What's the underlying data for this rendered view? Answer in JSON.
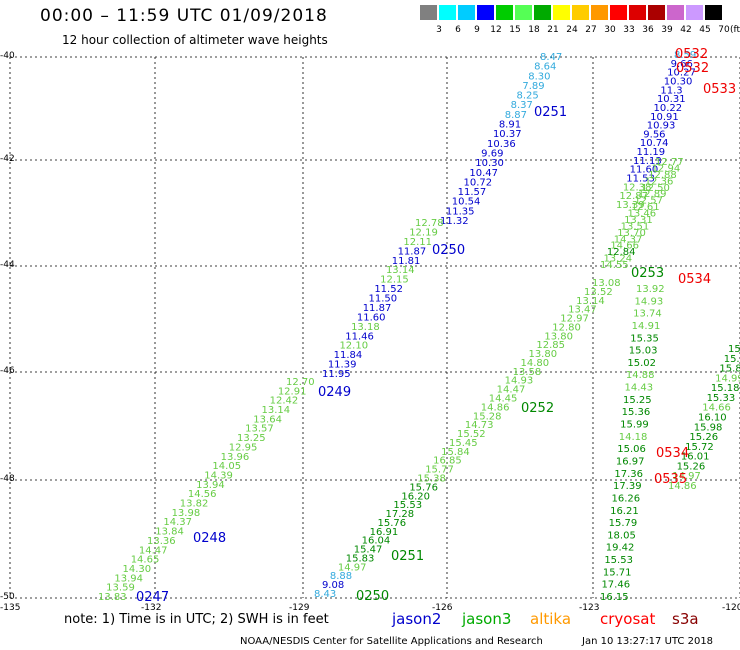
{
  "title": "00:00 – 11:59 UTC 01/09/2018",
  "subtitle": "12 hour collection of altimeter wave heights",
  "legend": {
    "unit": "(ft)",
    "colors": [
      "#808080",
      "#00ffff",
      "#00ccff",
      "#0000ff",
      "#00cc00",
      "#55ff55",
      "#00aa00",
      "#ffff00",
      "#ffcc00",
      "#ff9900",
      "#ff0000",
      "#dd0000",
      "#aa0000",
      "#cc66cc",
      "#cc99ff",
      "#000000"
    ],
    "labels": [
      "3",
      "6",
      "9",
      "12",
      "15",
      "18",
      "21",
      "24",
      "27",
      "30",
      "33",
      "36",
      "39",
      "42",
      "45",
      "70"
    ]
  },
  "axes": {
    "lat_labels": [
      "-40",
      "-42",
      "-44",
      "-46",
      "-48",
      "-50"
    ],
    "lon_labels": [
      "-135",
      "-132",
      "-129",
      "-126",
      "-123",
      "-120"
    ]
  },
  "note": "note:  1) Time is in UTC;  2) SWH is in feet",
  "satellites": [
    {
      "name": "jason2",
      "color": "#0000cc"
    },
    {
      "name": "jason3",
      "color": "#00aa00"
    },
    {
      "name": "altika",
      "color": "#ff9900"
    },
    {
      "name": "cryosat",
      "color": "#ff0000"
    },
    {
      "name": "s3a",
      "color": "#880000"
    }
  ],
  "credit": "NOAA/NESDIS Center for Satellite Applications and Research",
  "timestamp": "Jan 10 13:27:17 UTC 2018",
  "colors": {
    "sky": "#33aadd",
    "blue": "#0000cc",
    "light_green": "#66cc44",
    "green": "#008800",
    "red": "#ee0000"
  },
  "track_labels": [
    {
      "text": "0251",
      "color": "blue"
    },
    {
      "text": "0250",
      "color": "blue"
    },
    {
      "text": "0249",
      "color": "blue"
    },
    {
      "text": "0248",
      "color": "blue"
    },
    {
      "text": "0247",
      "color": "blue"
    },
    {
      "text": "0253",
      "color": "green"
    },
    {
      "text": "0252",
      "color": "green"
    },
    {
      "text": "0251",
      "color": "green"
    },
    {
      "text": "0250",
      "color": "green"
    },
    {
      "text": "0532",
      "color": "red"
    },
    {
      "text": "0532",
      "color": "red"
    },
    {
      "text": "0533",
      "color": "red"
    },
    {
      "text": "0534",
      "color": "red"
    },
    {
      "text": "0534",
      "color": "red"
    },
    {
      "text": "0535",
      "color": "red"
    }
  ],
  "swh_values": [
    {
      "t": "8.47",
      "c": "sky"
    },
    {
      "t": "8.64",
      "c": "sky"
    },
    {
      "t": "8.30",
      "c": "sky"
    },
    {
      "t": "7.89",
      "c": "sky"
    },
    {
      "t": "8.25",
      "c": "sky"
    },
    {
      "t": "8.37",
      "c": "sky"
    },
    {
      "t": "8.87",
      "c": "sky"
    },
    {
      "t": "8.91",
      "c": "blue"
    },
    {
      "t": "10.37",
      "c": "blue"
    },
    {
      "t": "10.36",
      "c": "blue"
    },
    {
      "t": "9.69",
      "c": "blue"
    },
    {
      "t": "10.30",
      "c": "blue"
    },
    {
      "t": "10.47",
      "c": "blue"
    },
    {
      "t": "10.72",
      "c": "blue"
    },
    {
      "t": "11.57",
      "c": "blue"
    },
    {
      "t": "10.54",
      "c": "blue"
    },
    {
      "t": "11.35",
      "c": "blue"
    },
    {
      "t": "11.32",
      "c": "blue"
    },
    {
      "t": "12.78",
      "c": "light_green"
    },
    {
      "t": "12.19",
      "c": "light_green"
    },
    {
      "t": "12.11",
      "c": "light_green"
    },
    {
      "t": "11.87",
      "c": "blue"
    },
    {
      "t": "11.81",
      "c": "blue"
    },
    {
      "t": "13.14",
      "c": "light_green"
    },
    {
      "t": "12.15",
      "c": "light_green"
    },
    {
      "t": "11.52",
      "c": "blue"
    },
    {
      "t": "11.50",
      "c": "blue"
    },
    {
      "t": "11.87",
      "c": "blue"
    },
    {
      "t": "11.60",
      "c": "blue"
    },
    {
      "t": "13.18",
      "c": "light_green"
    },
    {
      "t": "11.46",
      "c": "blue"
    },
    {
      "t": "12.10",
      "c": "light_green"
    },
    {
      "t": "11.84",
      "c": "blue"
    },
    {
      "t": "11.39",
      "c": "blue"
    },
    {
      "t": "11.95",
      "c": "blue"
    },
    {
      "t": "12.70",
      "c": "light_green"
    },
    {
      "t": "12.91",
      "c": "light_green"
    },
    {
      "t": "12.42",
      "c": "light_green"
    },
    {
      "t": "13.14",
      "c": "light_green"
    },
    {
      "t": "13.64",
      "c": "light_green"
    },
    {
      "t": "13.57",
      "c": "light_green"
    },
    {
      "t": "13.25",
      "c": "light_green"
    },
    {
      "t": "12.95",
      "c": "light_green"
    },
    {
      "t": "13.96",
      "c": "light_green"
    },
    {
      "t": "14.05",
      "c": "light_green"
    },
    {
      "t": "14.39",
      "c": "light_green"
    },
    {
      "t": "13.94",
      "c": "light_green"
    },
    {
      "t": "14.56",
      "c": "light_green"
    },
    {
      "t": "13.82",
      "c": "light_green"
    },
    {
      "t": "13.98",
      "c": "light_green"
    },
    {
      "t": "14.37",
      "c": "light_green"
    },
    {
      "t": "13.84",
      "c": "light_green"
    },
    {
      "t": "13.36",
      "c": "light_green"
    },
    {
      "t": "14.47",
      "c": "light_green"
    },
    {
      "t": "14.65",
      "c": "light_green"
    },
    {
      "t": "14.30",
      "c": "light_green"
    },
    {
      "t": "13.94",
      "c": "light_green"
    },
    {
      "t": "13.59",
      "c": "light_green"
    },
    {
      "t": "13.83",
      "c": "light_green"
    },
    {
      "t": "13.08",
      "c": "light_green"
    },
    {
      "t": "13.52",
      "c": "light_green"
    },
    {
      "t": "13.14",
      "c": "light_green"
    },
    {
      "t": "13.47",
      "c": "light_green"
    },
    {
      "t": "12.97",
      "c": "light_green"
    },
    {
      "t": "12.80",
      "c": "light_green"
    },
    {
      "t": "13.80",
      "c": "light_green"
    },
    {
      "t": "12.85",
      "c": "light_green"
    },
    {
      "t": "13.80",
      "c": "light_green"
    },
    {
      "t": "14.80",
      "c": "light_green"
    },
    {
      "t": "13.58",
      "c": "light_green"
    },
    {
      "t": "14.93",
      "c": "light_green"
    },
    {
      "t": "14.47",
      "c": "light_green"
    },
    {
      "t": "14.45",
      "c": "light_green"
    },
    {
      "t": "14.86",
      "c": "light_green"
    },
    {
      "t": "15.28",
      "c": "light_green"
    },
    {
      "t": "14.73",
      "c": "light_green"
    },
    {
      "t": "15.52",
      "c": "light_green"
    },
    {
      "t": "15.45",
      "c": "light_green"
    },
    {
      "t": "15.84",
      "c": "light_green"
    },
    {
      "t": "16.85",
      "c": "light_green"
    },
    {
      "t": "15.77",
      "c": "light_green"
    },
    {
      "t": "15.38",
      "c": "light_green"
    },
    {
      "t": "15.76",
      "c": "green"
    },
    {
      "t": "16.20",
      "c": "green"
    },
    {
      "t": "15.53",
      "c": "green"
    },
    {
      "t": "17.28",
      "c": "green"
    },
    {
      "t": "15.76",
      "c": "green"
    },
    {
      "t": "16.91",
      "c": "green"
    },
    {
      "t": "16.04",
      "c": "green"
    },
    {
      "t": "15.47",
      "c": "green"
    },
    {
      "t": "15.83",
      "c": "green"
    },
    {
      "t": "14.97",
      "c": "light_green"
    },
    {
      "t": "8.88",
      "c": "sky"
    },
    {
      "t": "9.08",
      "c": "blue"
    },
    {
      "t": "8.43",
      "c": "sky"
    },
    {
      "t": "8.59",
      "c": "sky"
    },
    {
      "t": "9.66",
      "c": "blue"
    },
    {
      "t": "10.27",
      "c": "blue"
    },
    {
      "t": "10.30",
      "c": "blue"
    },
    {
      "t": "11.3",
      "c": "blue"
    },
    {
      "t": "10.31",
      "c": "blue"
    },
    {
      "t": "10.22",
      "c": "blue"
    },
    {
      "t": "10.91",
      "c": "blue"
    },
    {
      "t": "10.93",
      "c": "blue"
    },
    {
      "t": "9.56",
      "c": "blue"
    },
    {
      "t": "10.74",
      "c": "blue"
    },
    {
      "t": "11.19",
      "c": "blue"
    },
    {
      "t": "11.13",
      "c": "blue"
    },
    {
      "t": "11.60",
      "c": "blue"
    },
    {
      "t": "11.53",
      "c": "blue"
    },
    {
      "t": "12.38",
      "c": "light_green"
    },
    {
      "t": "12.87",
      "c": "light_green"
    },
    {
      "t": "13.39",
      "c": "light_green"
    },
    {
      "t": "12.77",
      "c": "light_green"
    },
    {
      "t": "12.94",
      "c": "light_green"
    },
    {
      "t": "12.88",
      "c": "light_green"
    },
    {
      "t": "12.36",
      "c": "light_green"
    },
    {
      "t": "12.50",
      "c": "light_green"
    },
    {
      "t": "12.89",
      "c": "light_green"
    },
    {
      "t": "12.57",
      "c": "light_green"
    },
    {
      "t": "12.61",
      "c": "light_green"
    },
    {
      "t": "13.46",
      "c": "light_green"
    },
    {
      "t": "13.31",
      "c": "light_green"
    },
    {
      "t": "13.51",
      "c": "light_green"
    },
    {
      "t": "13.70",
      "c": "light_green"
    },
    {
      "t": "14.37",
      "c": "light_green"
    },
    {
      "t": "14.66",
      "c": "light_green"
    },
    {
      "t": "12.84",
      "c": "green"
    },
    {
      "t": "13.24",
      "c": "light_green"
    },
    {
      "t": "14.55",
      "c": "light_green"
    },
    {
      "t": "13.92",
      "c": "light_green"
    },
    {
      "t": "14.93",
      "c": "light_green"
    },
    {
      "t": "13.74",
      "c": "light_green"
    },
    {
      "t": "14.91",
      "c": "light_green"
    },
    {
      "t": "15.35",
      "c": "green"
    },
    {
      "t": "15.03",
      "c": "green"
    },
    {
      "t": "15.02",
      "c": "green"
    },
    {
      "t": "14.88",
      "c": "light_green"
    },
    {
      "t": "14.43",
      "c": "light_green"
    },
    {
      "t": "15.25",
      "c": "green"
    },
    {
      "t": "15.36",
      "c": "green"
    },
    {
      "t": "15.99",
      "c": "green"
    },
    {
      "t": "14.18",
      "c": "light_green"
    },
    {
      "t": "15.06",
      "c": "green"
    },
    {
      "t": "16.97",
      "c": "green"
    },
    {
      "t": "17.36",
      "c": "green"
    },
    {
      "t": "17.39",
      "c": "green"
    },
    {
      "t": "16.26",
      "c": "green"
    },
    {
      "t": "16.21",
      "c": "green"
    },
    {
      "t": "15.79",
      "c": "green"
    },
    {
      "t": "18.05",
      "c": "green"
    },
    {
      "t": "19.42",
      "c": "green"
    },
    {
      "t": "15.53",
      "c": "green"
    },
    {
      "t": "15.71",
      "c": "green"
    },
    {
      "t": "17.46",
      "c": "green"
    },
    {
      "t": "16.15",
      "c": "green"
    },
    {
      "t": "14.86",
      "c": "light_green"
    },
    {
      "t": "14.97",
      "c": "light_green"
    },
    {
      "t": "15.26",
      "c": "green"
    },
    {
      "t": "16.01",
      "c": "green"
    },
    {
      "t": "15.72",
      "c": "green"
    },
    {
      "t": "15.26",
      "c": "green"
    },
    {
      "t": "15.98",
      "c": "green"
    },
    {
      "t": "16.10",
      "c": "green"
    },
    {
      "t": "14.66",
      "c": "light_green"
    },
    {
      "t": "15.33",
      "c": "green"
    },
    {
      "t": "15.18",
      "c": "green"
    },
    {
      "t": "14.99",
      "c": "light_green"
    },
    {
      "t": "15.8",
      "c": "green"
    },
    {
      "t": "15.3",
      "c": "green"
    },
    {
      "t": "15",
      "c": "green"
    }
  ]
}
